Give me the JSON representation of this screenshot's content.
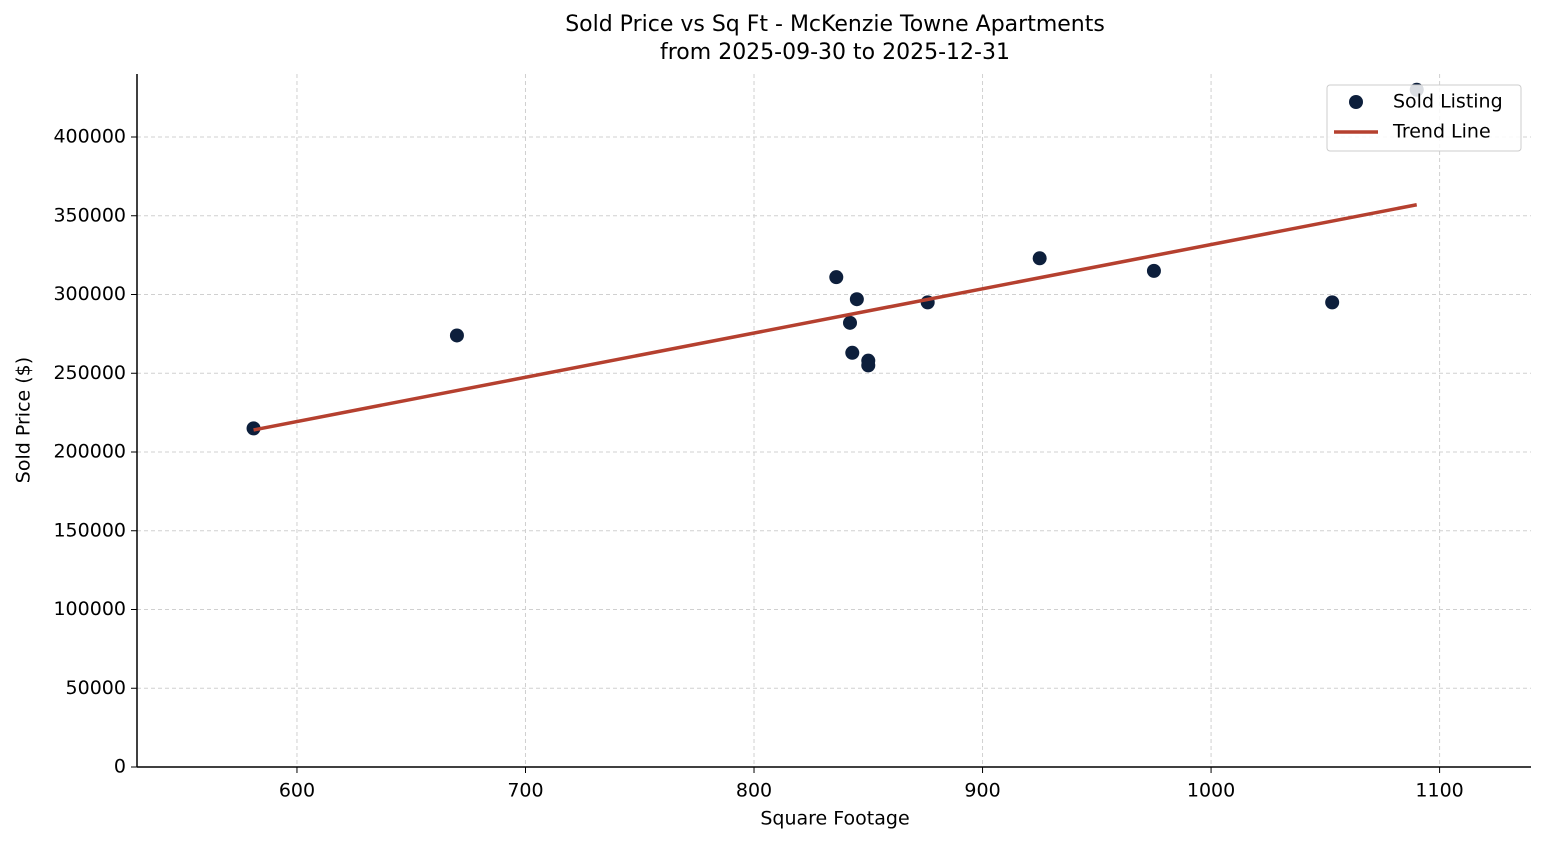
{
  "chart_data": {
    "type": "scatter",
    "title": "Sold Price vs Sq Ft - McKenzie Towne Apartments",
    "subtitle": "from 2025-09-30 to 2025-12-31",
    "x_label": "Square Footage",
    "y_label": "Sold Price ($)",
    "xlim": [
      530,
      1140
    ],
    "xticks": [
      600,
      700,
      800,
      900,
      1000,
      1100
    ],
    "ylim": [
      0,
      440000
    ],
    "yticks": [
      0,
      50000,
      100000,
      150000,
      200000,
      250000,
      300000,
      350000,
      400000
    ],
    "grid": true,
    "legend": "upper right",
    "series": [
      {
        "name": "Sold Listing",
        "kind": "scatter",
        "color": "#0d1f3c",
        "x": [
          581,
          670,
          836,
          845,
          842,
          843,
          850,
          850,
          876,
          925,
          975,
          1053,
          1090
        ],
        "values": [
          215000,
          274000,
          311000,
          297000,
          282000,
          263000,
          258000,
          255000,
          295000,
          323000,
          315000,
          295000,
          430000
        ]
      },
      {
        "name": "Trend Line",
        "kind": "line",
        "color": "#b5402f",
        "x": [
          581,
          1090
        ],
        "values": [
          214000,
          357000
        ]
      }
    ]
  }
}
